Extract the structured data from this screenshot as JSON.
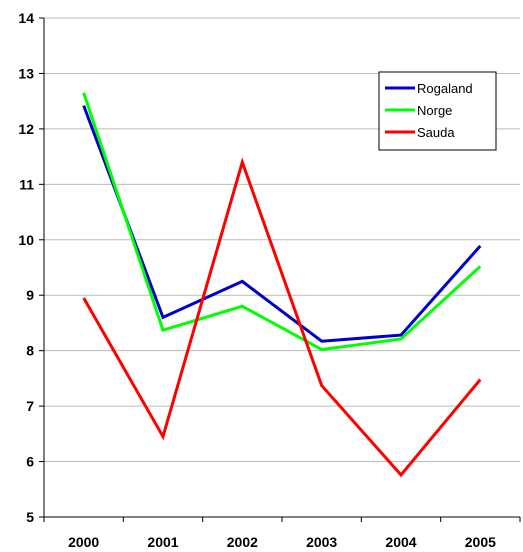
{
  "chart_data": {
    "type": "line",
    "title": "",
    "xlabel": "",
    "ylabel": "",
    "categories": [
      "2000",
      "2001",
      "2002",
      "2003",
      "2004",
      "2005"
    ],
    "ylim": [
      5,
      14
    ],
    "yticks": [
      5,
      6,
      7,
      8,
      9,
      10,
      11,
      12,
      13,
      14
    ],
    "grid": true,
    "legend_position": "top-right",
    "series": [
      {
        "name": "Rogaland",
        "color": "#0000cc",
        "values": [
          12.42,
          8.6,
          9.25,
          8.17,
          8.28,
          9.89
        ]
      },
      {
        "name": "Norge",
        "color": "#00ff00",
        "values": [
          12.65,
          8.37,
          8.8,
          8.02,
          8.21,
          9.52
        ]
      },
      {
        "name": "Sauda",
        "color": "#ff0000",
        "values": [
          8.95,
          6.45,
          11.4,
          7.37,
          5.76,
          7.48
        ]
      }
    ]
  }
}
